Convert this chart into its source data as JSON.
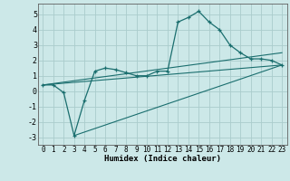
{
  "bg_color": "#cce8e8",
  "grid_color": "#aacccc",
  "line_color": "#1a6e6e",
  "xlabel": "Humidex (Indice chaleur)",
  "xlim": [
    -0.5,
    23.5
  ],
  "ylim": [
    -3.5,
    5.7
  ],
  "yticks": [
    -3,
    -2,
    -1,
    0,
    1,
    2,
    3,
    4,
    5
  ],
  "xticks": [
    0,
    1,
    2,
    3,
    4,
    5,
    6,
    7,
    8,
    9,
    10,
    11,
    12,
    13,
    14,
    15,
    16,
    17,
    18,
    19,
    20,
    21,
    22,
    23
  ],
  "curve_x": [
    0,
    1,
    2,
    3,
    4,
    5,
    6,
    7,
    8,
    9,
    10,
    11,
    12,
    13,
    14,
    15,
    16,
    17,
    18,
    19,
    20,
    21,
    22,
    23
  ],
  "curve_y": [
    0.4,
    0.4,
    -0.1,
    -2.9,
    -0.6,
    1.3,
    1.5,
    1.4,
    1.2,
    1.0,
    1.0,
    1.3,
    1.3,
    4.5,
    4.8,
    5.2,
    4.5,
    4.0,
    3.0,
    2.5,
    2.1,
    2.1,
    2.0,
    1.7
  ],
  "line1_x": [
    0,
    23
  ],
  "line1_y": [
    0.4,
    2.5
  ],
  "line2_x": [
    0,
    23
  ],
  "line2_y": [
    0.4,
    1.7
  ],
  "line3_x": [
    3,
    23
  ],
  "line3_y": [
    -2.9,
    1.7
  ]
}
